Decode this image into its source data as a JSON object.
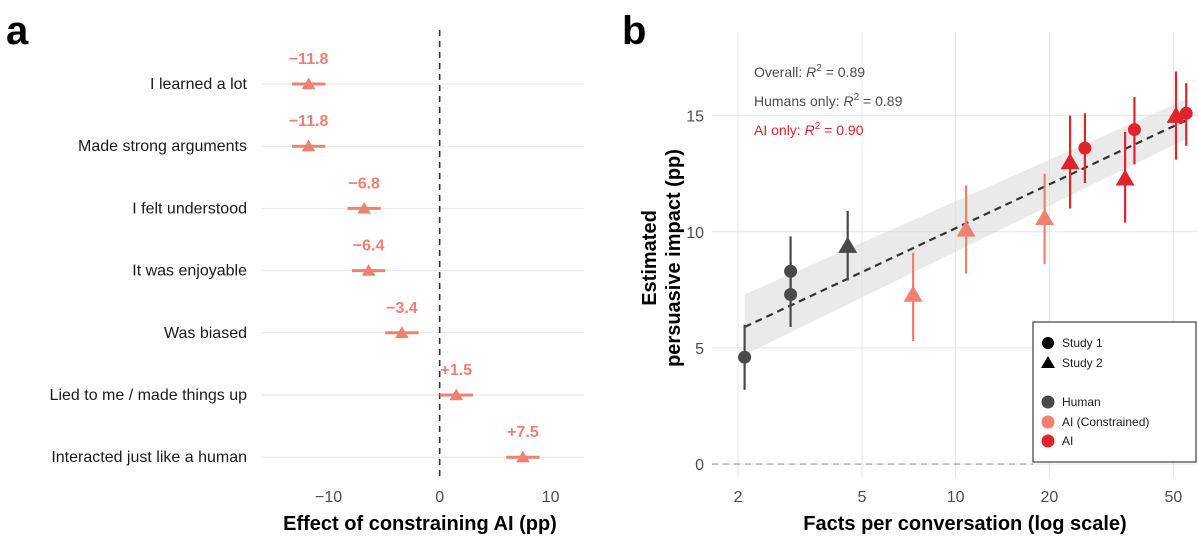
{
  "colors": {
    "human": "#4a4a4a",
    "ai_constrained": "#F08070",
    "ai": "#E0242B",
    "r2_ai_text": "#E0242B",
    "r2_text": "#4d4d4d"
  },
  "panel_a": {
    "letter": "a",
    "xlabel": "Effect of constraining AI (pp)",
    "xlim": [
      -16,
      13
    ],
    "xticks": [
      -10,
      0,
      10
    ],
    "xtick_labels": [
      "−10",
      "0",
      "10"
    ]
  },
  "panel_b": {
    "letter": "b",
    "xlabel": "Facts per conversation (log scale)",
    "ylabel_line1": "Estimated",
    "ylabel_line2": "persuasive impact (pp)",
    "xlim": [
      1.65,
      60
    ],
    "ylim": [
      -0.6,
      18.6
    ],
    "x_scale": "log",
    "xticks": [
      2,
      5,
      10,
      20,
      50
    ],
    "yticks": [
      0,
      5,
      10,
      15
    ],
    "r2": {
      "overall_prefix": "Overall: ",
      "humans_prefix": "Humans only: ",
      "ai_prefix": "AI only: ",
      "r": "R",
      "sup": "2",
      "overall_value": " = 0.89",
      "humans_value": " = 0.89",
      "ai_value": " = 0.90"
    },
    "legend": {
      "study1": "Study 1",
      "study2": "Study 2",
      "human": "Human",
      "ai_constrained": "AI (Constrained)",
      "ai": "AI"
    }
  },
  "chart_data": [
    {
      "type": "forest",
      "panel": "a",
      "xlabel": "Effect of constraining AI (pp)",
      "categories": [
        "I learned a lot",
        "Made strong arguments",
        "I felt understood",
        "It was enjoyable",
        "Was biased",
        "Lied to me / made things up",
        "Interacted just like a human"
      ],
      "values": [
        -11.8,
        -11.8,
        -6.8,
        -6.4,
        -3.4,
        1.5,
        7.5
      ],
      "value_labels": [
        "−11.8",
        "−11.8",
        "−6.8",
        "−6.4",
        "−3.4",
        "+1.5",
        "+7.5"
      ],
      "ci_low": [
        -13.3,
        -13.3,
        -8.3,
        -7.9,
        -4.9,
        0.0,
        6.0
      ],
      "ci_high": [
        -10.3,
        -10.3,
        -5.3,
        -4.9,
        -1.9,
        3.0,
        9.0
      ],
      "reference_line": 0
    },
    {
      "type": "scatter",
      "panel": "b",
      "xlabel": "Facts per conversation (log scale)",
      "ylabel": "Estimated persuasive impact (pp)",
      "x_scale": "log",
      "xlim": [
        1.65,
        60
      ],
      "ylim": [
        -0.6,
        18.6
      ],
      "points": [
        {
          "x": 2.1,
          "y": 4.6,
          "ylo": 3.2,
          "yhi": 6.0,
          "study": "Study 1",
          "group": "Human"
        },
        {
          "x": 2.95,
          "y": 7.3,
          "ylo": 5.9,
          "yhi": 8.7,
          "study": "Study 1",
          "group": "Human"
        },
        {
          "x": 2.95,
          "y": 8.3,
          "ylo": 6.8,
          "yhi": 9.8,
          "study": "Study 1",
          "group": "Human"
        },
        {
          "x": 4.5,
          "y": 9.4,
          "ylo": 7.9,
          "yhi": 10.9,
          "study": "Study 2",
          "group": "Human"
        },
        {
          "x": 7.3,
          "y": 7.3,
          "ylo": 5.3,
          "yhi": 9.1,
          "study": "Study 2",
          "group": "AI (Constrained)"
        },
        {
          "x": 10.8,
          "y": 10.1,
          "ylo": 8.2,
          "yhi": 12.0,
          "study": "Study 2",
          "group": "AI (Constrained)"
        },
        {
          "x": 19.3,
          "y": 10.6,
          "ylo": 8.6,
          "yhi": 12.5,
          "study": "Study 2",
          "group": "AI (Constrained)"
        },
        {
          "x": 23.3,
          "y": 13.0,
          "ylo": 11.0,
          "yhi": 15.0,
          "study": "Study 2",
          "group": "AI"
        },
        {
          "x": 26.0,
          "y": 13.6,
          "ylo": 12.1,
          "yhi": 15.1,
          "study": "Study 1",
          "group": "AI"
        },
        {
          "x": 35.0,
          "y": 12.3,
          "ylo": 10.4,
          "yhi": 14.3,
          "study": "Study 2",
          "group": "AI"
        },
        {
          "x": 37.5,
          "y": 14.4,
          "ylo": 12.9,
          "yhi": 15.8,
          "study": "Study 1",
          "group": "AI"
        },
        {
          "x": 51.0,
          "y": 15.0,
          "ylo": 13.1,
          "yhi": 16.9,
          "study": "Study 2",
          "group": "AI"
        },
        {
          "x": 55.0,
          "y": 15.1,
          "ylo": 13.7,
          "yhi": 16.4,
          "study": "Study 1",
          "group": "AI"
        }
      ],
      "fit": {
        "x": [
          2.1,
          55.0
        ],
        "y": [
          5.9,
          14.8
        ],
        "band_lo": [
          4.7,
          14.0
        ],
        "band_hi": [
          7.3,
          15.7
        ]
      },
      "reference_line": 0
    }
  ]
}
